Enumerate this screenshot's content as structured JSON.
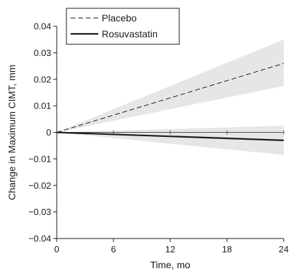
{
  "chart_data": {
    "type": "line",
    "title": "",
    "xlabel": "Time, mo",
    "ylabel": "Change in Maximum CIMT, mm",
    "xlim": [
      0,
      24
    ],
    "ylim": [
      -0.04,
      0.04
    ],
    "x_ticks": [
      0,
      6,
      12,
      18,
      24
    ],
    "x_tick_labels": [
      "0",
      "6",
      "12",
      "18",
      "24"
    ],
    "y_ticks": [
      0.04,
      0.03,
      0.02,
      0.01,
      0,
      -0.01,
      -0.02,
      -0.03,
      -0.04
    ],
    "y_tick_labels": [
      "0.04",
      "0.03",
      "0.02",
      "0.01",
      "0",
      "−0.01",
      "−0.02",
      "−0.03",
      "−0.04"
    ],
    "grid": false,
    "legend_position": "top-left",
    "series": [
      {
        "name": "Placebo",
        "style": "dashed",
        "color": "#1a1a1a",
        "x": [
          0,
          24
        ],
        "y": [
          0,
          0.026
        ],
        "ci_lower": [
          0,
          0.0175
        ],
        "ci_upper": [
          0,
          0.035
        ]
      },
      {
        "name": "Rosuvastatin",
        "style": "solid",
        "color": "#1a1a1a",
        "x": [
          0,
          24
        ],
        "y": [
          0,
          -0.003
        ],
        "ci_lower": [
          0,
          -0.0085
        ],
        "ci_upper": [
          0,
          0.0025
        ]
      }
    ],
    "band_color": "#e6e6e6"
  }
}
